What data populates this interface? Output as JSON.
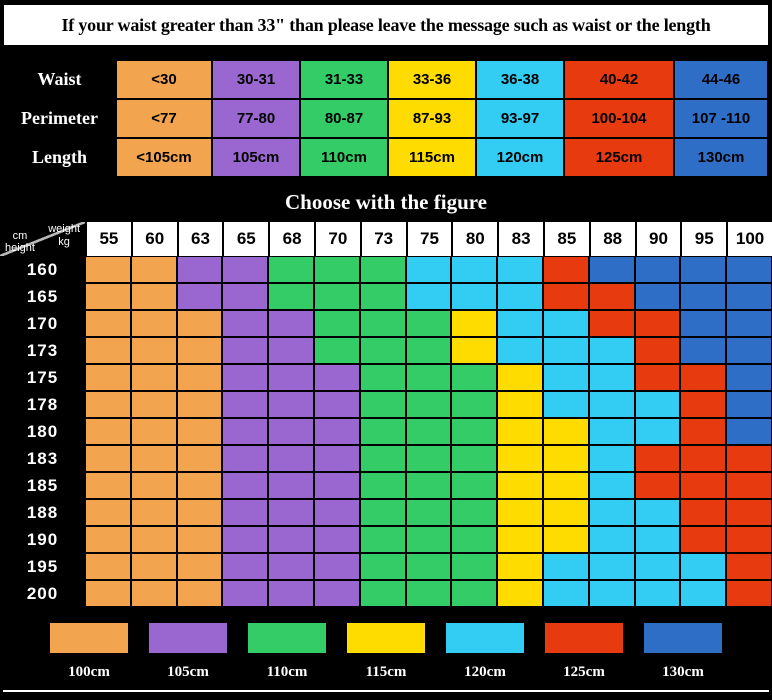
{
  "banner": {
    "text": "If your waist greater than 33\" than please leave the message such as waist or the length"
  },
  "figure_title": "Choose with the figure",
  "grid_corner": {
    "weight": "weight",
    "kg": "kg",
    "cm": "cm",
    "height": "height"
  },
  "size_key": {
    "O": {
      "label": "100cm",
      "color": "#F2A44F"
    },
    "P": {
      "label": "105cm",
      "color": "#9A66CF"
    },
    "G": {
      "label": "110cm",
      "color": "#33CC66"
    },
    "Y": {
      "label": "115cm",
      "color": "#FFDC00"
    },
    "C": {
      "label": "120cm",
      "color": "#33CCF2"
    },
    "R": {
      "label": "125cm",
      "color": "#E83A0F"
    },
    "B": {
      "label": "130cm",
      "color": "#2F6EC6"
    }
  },
  "legend_order": [
    "O",
    "P",
    "G",
    "Y",
    "C",
    "R",
    "B"
  ],
  "chart_data": [
    {
      "type": "table",
      "title": "Waist / Perimeter / Length size table",
      "column_keys": [
        "O",
        "P",
        "G",
        "Y",
        "C",
        "R",
        "B"
      ],
      "rows": [
        {
          "header": "Waist",
          "values": [
            "<30",
            "30-31",
            "31-33",
            "33-36",
            "36-38",
            "40-42",
            "44-46"
          ]
        },
        {
          "header": "Perimeter",
          "values": [
            "<77",
            "77-80",
            "80-87",
            "87-93",
            "93-97",
            "100-104",
            "107 -110"
          ]
        },
        {
          "header": "Length",
          "values": [
            "<105cm",
            "105cm",
            "110cm",
            "115cm",
            "120cm",
            "125cm",
            "130cm"
          ]
        }
      ]
    },
    {
      "type": "heatmap",
      "title": "Choose with the figure",
      "xlabel": "weight kg",
      "ylabel": "height cm",
      "x": [
        "55",
        "60",
        "63",
        "65",
        "68",
        "70",
        "73",
        "75",
        "80",
        "83",
        "85",
        "88",
        "90",
        "95",
        "100"
      ],
      "y": [
        "160",
        "165",
        "170",
        "173",
        "175",
        "178",
        "180",
        "183",
        "185",
        "188",
        "190",
        "195",
        "200"
      ],
      "cells": [
        [
          "O",
          "O",
          "P",
          "P",
          "G",
          "G",
          "G",
          "C",
          "C",
          "C",
          "R",
          "B",
          "B",
          "B",
          "B"
        ],
        [
          "O",
          "O",
          "P",
          "P",
          "G",
          "G",
          "G",
          "C",
          "C",
          "C",
          "R",
          "R",
          "B",
          "B",
          "B"
        ],
        [
          "O",
          "O",
          "O",
          "P",
          "P",
          "G",
          "G",
          "G",
          "Y",
          "C",
          "C",
          "R",
          "R",
          "B",
          "B"
        ],
        [
          "O",
          "O",
          "O",
          "P",
          "P",
          "G",
          "G",
          "G",
          "Y",
          "C",
          "C",
          "C",
          "R",
          "B",
          "B"
        ],
        [
          "O",
          "O",
          "O",
          "P",
          "P",
          "P",
          "G",
          "G",
          "G",
          "Y",
          "C",
          "C",
          "R",
          "R",
          "B"
        ],
        [
          "O",
          "O",
          "O",
          "P",
          "P",
          "P",
          "G",
          "G",
          "G",
          "Y",
          "C",
          "C",
          "C",
          "R",
          "B"
        ],
        [
          "O",
          "O",
          "O",
          "P",
          "P",
          "P",
          "G",
          "G",
          "G",
          "Y",
          "Y",
          "C",
          "C",
          "R",
          "B"
        ],
        [
          "O",
          "O",
          "O",
          "P",
          "P",
          "P",
          "G",
          "G",
          "G",
          "Y",
          "Y",
          "C",
          "R",
          "R",
          "R"
        ],
        [
          "O",
          "O",
          "O",
          "P",
          "P",
          "P",
          "G",
          "G",
          "G",
          "Y",
          "Y",
          "C",
          "R",
          "R",
          "R"
        ],
        [
          "O",
          "O",
          "O",
          "P",
          "P",
          "P",
          "G",
          "G",
          "G",
          "Y",
          "Y",
          "C",
          "C",
          "R",
          "R"
        ],
        [
          "O",
          "O",
          "O",
          "P",
          "P",
          "P",
          "G",
          "G",
          "G",
          "Y",
          "Y",
          "C",
          "C",
          "R",
          "R"
        ],
        [
          "O",
          "O",
          "O",
          "P",
          "P",
          "P",
          "G",
          "G",
          "G",
          "Y",
          "C",
          "C",
          "C",
          "C",
          "R"
        ],
        [
          "O",
          "O",
          "O",
          "P",
          "P",
          "P",
          "G",
          "G",
          "G",
          "Y",
          "C",
          "C",
          "C",
          "C",
          "R"
        ]
      ],
      "cell_value_legend": "letters map to size_key entries (garment length sizes)"
    }
  ]
}
